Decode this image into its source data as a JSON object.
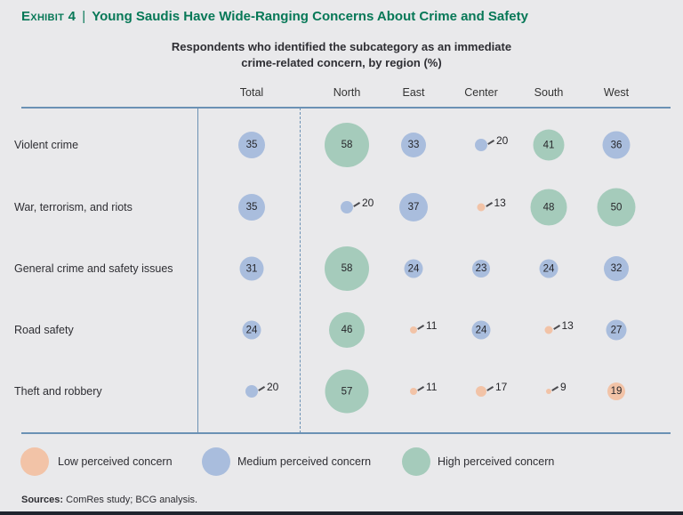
{
  "header": {
    "exhibit_label": "Exhibit 4",
    "separator": "|",
    "title": "Young Saudis Have Wide-Ranging Concerns About Crime and Safety"
  },
  "subtitle": {
    "line1": "Respondents who identified the subcategory as an immediate",
    "line2": "crime-related concern, by region (%)"
  },
  "chart_data": {
    "type": "bubble-table",
    "value_unit": "%",
    "columns": [
      "Total",
      "North",
      "East",
      "Center",
      "South",
      "West"
    ],
    "rows": [
      {
        "label": "Violent crime",
        "cells": [
          {
            "value": 35,
            "level": "medium",
            "label_outside": false
          },
          {
            "value": 58,
            "level": "high",
            "label_outside": false
          },
          {
            "value": 33,
            "level": "medium",
            "label_outside": false
          },
          {
            "value": 20,
            "level": "medium",
            "label_outside": true
          },
          {
            "value": 41,
            "level": "high",
            "label_outside": false
          },
          {
            "value": 36,
            "level": "medium",
            "label_outside": false
          }
        ]
      },
      {
        "label": "War, terrorism, and riots",
        "cells": [
          {
            "value": 35,
            "level": "medium",
            "label_outside": false
          },
          {
            "value": 20,
            "level": "medium",
            "label_outside": true
          },
          {
            "value": 37,
            "level": "medium",
            "label_outside": false
          },
          {
            "value": 13,
            "level": "low",
            "label_outside": true
          },
          {
            "value": 48,
            "level": "high",
            "label_outside": false
          },
          {
            "value": 50,
            "level": "high",
            "label_outside": false
          }
        ]
      },
      {
        "label": "General crime and safety issues",
        "cells": [
          {
            "value": 31,
            "level": "medium",
            "label_outside": false
          },
          {
            "value": 58,
            "level": "high",
            "label_outside": false
          },
          {
            "value": 24,
            "level": "medium",
            "label_outside": false
          },
          {
            "value": 23,
            "level": "medium",
            "label_outside": false
          },
          {
            "value": 24,
            "level": "medium",
            "label_outside": false
          },
          {
            "value": 32,
            "level": "medium",
            "label_outside": false
          }
        ]
      },
      {
        "label": "Road safety",
        "cells": [
          {
            "value": 24,
            "level": "medium",
            "label_outside": false
          },
          {
            "value": 46,
            "level": "high",
            "label_outside": false
          },
          {
            "value": 11,
            "level": "low",
            "label_outside": true
          },
          {
            "value": 24,
            "level": "medium",
            "label_outside": false
          },
          {
            "value": 13,
            "level": "low",
            "label_outside": true
          },
          {
            "value": 27,
            "level": "medium",
            "label_outside": false
          }
        ]
      },
      {
        "label": "Theft and robbery",
        "cells": [
          {
            "value": 20,
            "level": "medium",
            "label_outside": true
          },
          {
            "value": 57,
            "level": "high",
            "label_outside": false
          },
          {
            "value": 11,
            "level": "low",
            "label_outside": true
          },
          {
            "value": 17,
            "level": "low",
            "label_outside": true
          },
          {
            "value": 9,
            "level": "low",
            "label_outside": true
          },
          {
            "value": 19,
            "level": "low",
            "label_outside": false
          }
        ]
      }
    ],
    "legend_position": "bottom"
  },
  "legend": {
    "items": [
      {
        "label": "Low perceived concern",
        "level": "low"
      },
      {
        "label": "Medium perceived concern",
        "level": "medium"
      },
      {
        "label": "High perceived concern",
        "level": "high"
      }
    ]
  },
  "sources": {
    "label": "Sources:",
    "text": "ComRes study; BCG analysis."
  },
  "colors": {
    "low": "#F2C3A7",
    "medium": "#A9BDDD",
    "high": "#A5CBBB",
    "title_green": "#077857",
    "line_blue": "#6B91B4",
    "background": "#E9E9EB",
    "footer_bar": "#20242E"
  }
}
